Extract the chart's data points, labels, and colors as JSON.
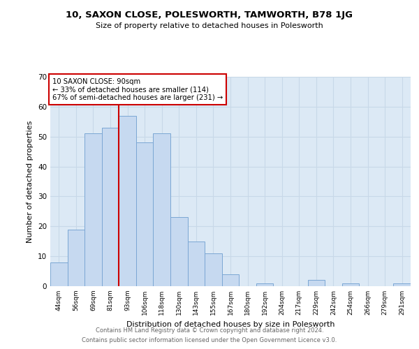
{
  "title1": "10, SAXON CLOSE, POLESWORTH, TAMWORTH, B78 1JG",
  "title2": "Size of property relative to detached houses in Polesworth",
  "xlabel": "Distribution of detached houses by size in Polesworth",
  "ylabel": "Number of detached properties",
  "bar_labels": [
    "44sqm",
    "56sqm",
    "69sqm",
    "81sqm",
    "93sqm",
    "106sqm",
    "118sqm",
    "130sqm",
    "143sqm",
    "155sqm",
    "167sqm",
    "180sqm",
    "192sqm",
    "204sqm",
    "217sqm",
    "229sqm",
    "242sqm",
    "254sqm",
    "266sqm",
    "279sqm",
    "291sqm"
  ],
  "bar_values": [
    8,
    19,
    51,
    53,
    57,
    48,
    51,
    23,
    15,
    11,
    4,
    0,
    1,
    0,
    0,
    2,
    0,
    1,
    0,
    0,
    1
  ],
  "bar_color": "#c6d9f0",
  "bar_edgecolor": "#7ba7d4",
  "vline_x_index": 4,
  "vline_color": "#cc0000",
  "annotation_title": "10 SAXON CLOSE: 90sqm",
  "annotation_line1": "← 33% of detached houses are smaller (114)",
  "annotation_line2": "67% of semi-detached houses are larger (231) →",
  "annotation_box_edgecolor": "#cc0000",
  "ylim": [
    0,
    70
  ],
  "yticks": [
    0,
    10,
    20,
    30,
    40,
    50,
    60,
    70
  ],
  "footer1": "Contains HM Land Registry data © Crown copyright and database right 2024.",
  "footer2": "Contains public sector information licensed under the Open Government Licence v3.0.",
  "background_color": "#ffffff",
  "plot_bg_color": "#dce9f5",
  "grid_color": "#c8d8e8"
}
